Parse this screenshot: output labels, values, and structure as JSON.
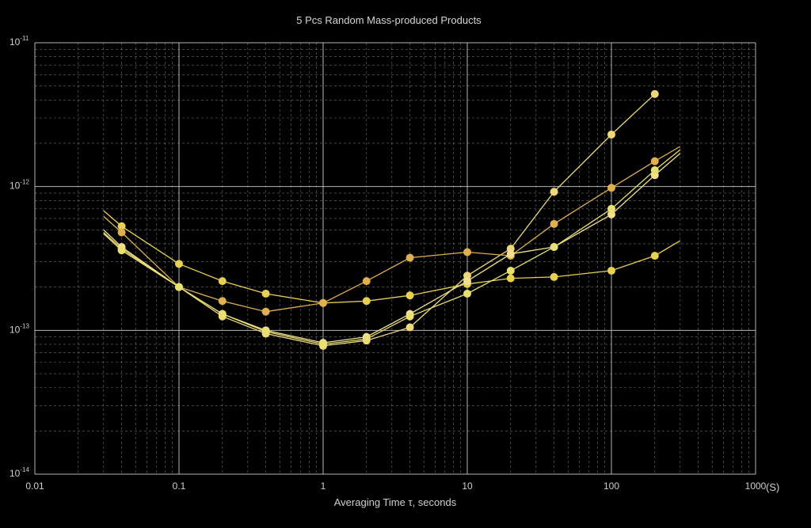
{
  "chart_data": {
    "type": "line",
    "title": "5 Pcs Random Mass-produced Products",
    "xlabel": "Averaging Time τ, seconds",
    "xunit": "(S)",
    "ylabel": "",
    "xscale": "log",
    "yscale": "log",
    "xlim": [
      0.01,
      1000
    ],
    "ylim": [
      1e-14,
      1e-11
    ],
    "x_ticks": [
      {
        "value": 0.01,
        "label": "0.01"
      },
      {
        "value": 0.1,
        "label": "0.1"
      },
      {
        "value": 1,
        "label": "1"
      },
      {
        "value": 10,
        "label": "10"
      },
      {
        "value": 100,
        "label": "100"
      },
      {
        "value": 1000,
        "label": "1000"
      }
    ],
    "y_ticks": [
      {
        "value": 1e-14,
        "base": "10",
        "exp": "-14"
      },
      {
        "value": 1e-13,
        "base": "10",
        "exp": "-13"
      },
      {
        "value": 1e-12,
        "base": "10",
        "exp": "-12"
      },
      {
        "value": 1e-11,
        "base": "10",
        "exp": "-11"
      }
    ],
    "grid": true,
    "background": "#000000",
    "grid_color": "#c8c8c8",
    "series": [
      {
        "color": "#f0d878",
        "x": [
          0.03,
          0.04,
          0.1,
          0.2,
          0.4,
          1,
          2,
          4,
          10,
          20,
          40,
          100,
          200
        ],
        "y": [
          4.8e-13,
          3.7e-13,
          2e-13,
          1.25e-13,
          9.5e-14,
          7.8e-14,
          8.5e-14,
          1.05e-13,
          2.4e-13,
          3.7e-13,
          9.2e-13,
          2.3e-12,
          4.4e-12
        ]
      },
      {
        "color": "#e8d050",
        "x": [
          0.03,
          0.04,
          0.1,
          0.2,
          0.4,
          1,
          2,
          4,
          10,
          20,
          40,
          100,
          200,
          300
        ],
        "y": [
          6.8e-13,
          5.3e-13,
          2.9e-13,
          2.2e-13,
          1.8e-13,
          1.55e-13,
          1.6e-13,
          1.75e-13,
          2.1e-13,
          2.3e-13,
          2.35e-13,
          2.6e-13,
          3.3e-13,
          4.2e-13
        ]
      },
      {
        "color": "#e0b050",
        "x": [
          0.03,
          0.04,
          0.1,
          0.2,
          0.4,
          1,
          2,
          4,
          10,
          20,
          40,
          100,
          200,
          300
        ],
        "y": [
          6.2e-13,
          4.8e-13,
          2e-13,
          1.6e-13,
          1.35e-13,
          1.55e-13,
          2.2e-13,
          3.2e-13,
          3.5e-13,
          3.3e-13,
          5.5e-13,
          9.8e-13,
          1.5e-12,
          1.9e-12
        ]
      },
      {
        "color": "#f2e090",
        "x": [
          0.03,
          0.04,
          0.1,
          0.2,
          0.4,
          1,
          2,
          4,
          10,
          20,
          40,
          100,
          200,
          300
        ],
        "y": [
          5e-13,
          3.8e-13,
          2e-13,
          1.3e-13,
          1e-13,
          8.2e-14,
          9e-14,
          1.3e-13,
          2.2e-13,
          3.4e-13,
          3.8e-13,
          6.4e-13,
          1.2e-12,
          1.7e-12
        ]
      },
      {
        "color": "#e8e070",
        "x": [
          0.03,
          0.04,
          0.1,
          0.2,
          0.4,
          1,
          2,
          4,
          10,
          20,
          40,
          100,
          200,
          300
        ],
        "y": [
          4.7e-13,
          3.6e-13,
          2e-13,
          1.3e-13,
          9.8e-14,
          8e-14,
          8.7e-14,
          1.25e-13,
          1.8e-13,
          2.6e-13,
          3.8e-13,
          7e-13,
          1.3e-12,
          1.8e-12
        ]
      }
    ]
  }
}
